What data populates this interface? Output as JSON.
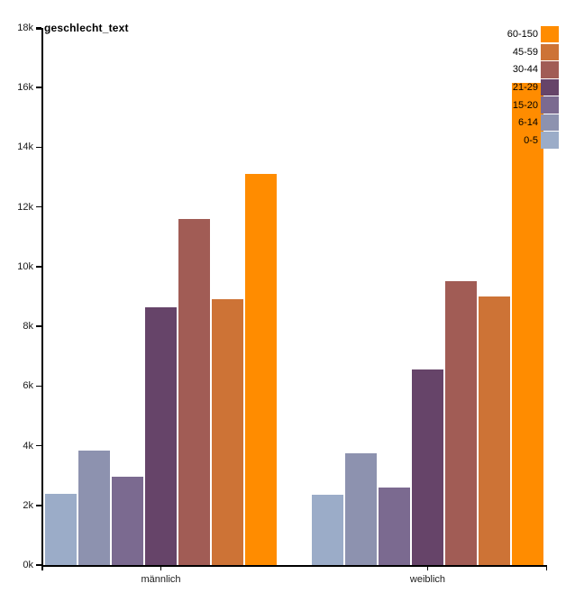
{
  "chart_data": {
    "type": "bar",
    "title": "geschlecht_text",
    "groups": [
      "männlich",
      "weiblich"
    ],
    "series": [
      {
        "name": "0-5",
        "color": "#9bacc8",
        "values": [
          2400,
          2350
        ]
      },
      {
        "name": "6-14",
        "color": "#8d92af",
        "values": [
          3850,
          3750
        ]
      },
      {
        "name": "15-20",
        "color": "#7b6a90",
        "values": [
          2950,
          2600
        ]
      },
      {
        "name": "21-29",
        "color": "#664469",
        "values": [
          8650,
          6550
        ]
      },
      {
        "name": "30-44",
        "color": "#a15c55",
        "values": [
          11600,
          9500
        ]
      },
      {
        "name": "45-59",
        "color": "#cd7336",
        "values": [
          8900,
          9000
        ]
      },
      {
        "name": "60-150",
        "color": "#ff8c00",
        "values": [
          13100,
          16150
        ]
      }
    ],
    "y_ticks": [
      "0k",
      "2k",
      "4k",
      "6k",
      "8k",
      "10k",
      "12k",
      "14k",
      "16k",
      "18k"
    ],
    "ylim": [
      0,
      18000
    ],
    "legend_order": [
      "60-150",
      "45-59",
      "30-44",
      "21-29",
      "15-20",
      "6-14",
      "0-5"
    ],
    "legend_position": "top-right",
    "grid": "off",
    "axis_color": "#000000"
  }
}
